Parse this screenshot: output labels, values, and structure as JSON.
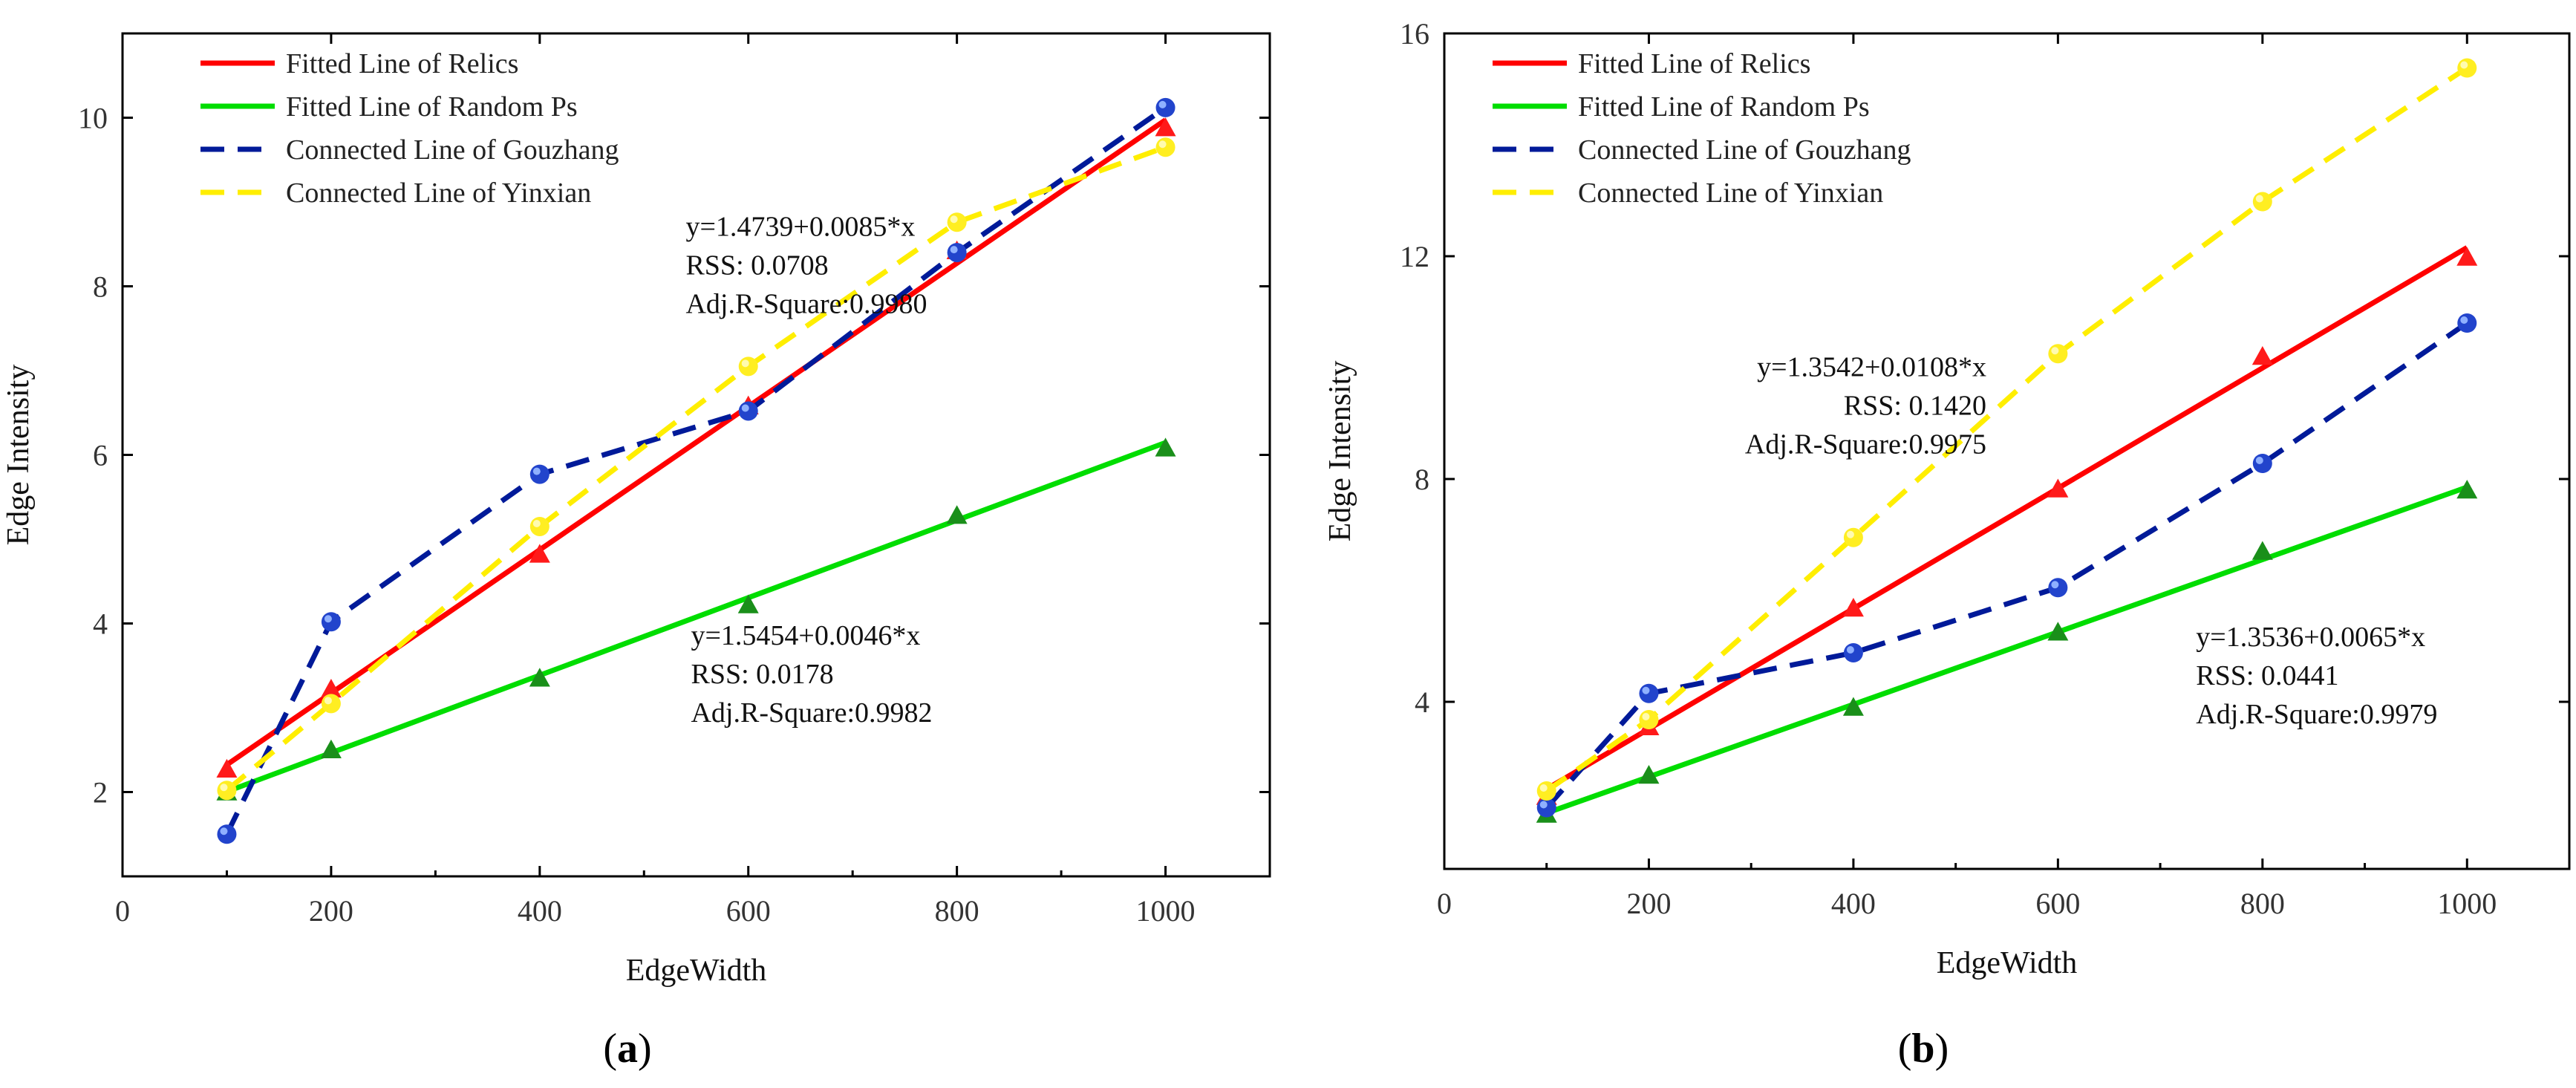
{
  "chart_data": [
    {
      "id": "a",
      "type": "line",
      "caption_label": "a",
      "xlabel": "EdgeWidth",
      "ylabel": "Edge Intensity",
      "xlim": [
        0,
        1100
      ],
      "ylim": [
        1,
        11
      ],
      "xticks": [
        0,
        200,
        400,
        600,
        800,
        1000
      ],
      "yticks": [
        2,
        4,
        6,
        8,
        10
      ],
      "x": [
        100,
        200,
        400,
        600,
        800,
        1000
      ],
      "series": [
        {
          "name": "Fitted Line of Relics",
          "color": "#ff0000",
          "style": "solid",
          "marker": "triangle",
          "fit": {
            "intercept": 1.4739,
            "slope": 0.0085
          },
          "values": [
            2.27,
            3.22,
            4.82,
            6.58,
            8.42,
            9.88
          ]
        },
        {
          "name": "Fitted Line of Random Ps",
          "color": "#00dd00",
          "style": "solid",
          "marker": "triangle-dark",
          "fit": {
            "intercept": 1.5454,
            "slope": 0.0046
          },
          "values": [
            2.0,
            2.5,
            3.35,
            4.22,
            5.28,
            6.08
          ]
        },
        {
          "name": "Connected Line of Gouzhang",
          "color": "#001a99",
          "style": "dashed",
          "marker": "circle-blue",
          "values": [
            1.5,
            4.02,
            5.77,
            6.52,
            8.4,
            10.12
          ]
        },
        {
          "name": "Connected Line of Yinxian",
          "color": "#ffee00",
          "style": "dashed",
          "marker": "circle-yellow",
          "values": [
            2.02,
            3.05,
            5.15,
            7.05,
            8.76,
            9.65
          ]
        }
      ],
      "annotations": [
        {
          "lines": [
            "y=1.4739+0.0085*x",
            "RSS: 0.0708",
            "Adj.R-Square:0.9980"
          ],
          "anchor_x": 540,
          "anchor_y": 8.6,
          "align": "start"
        },
        {
          "lines": [
            "y=1.5454+0.0046*x",
            "RSS: 0.0178",
            "Adj.R-Square:0.9982"
          ],
          "anchor_x": 545,
          "anchor_y": 3.75,
          "align": "start"
        }
      ]
    },
    {
      "id": "b",
      "type": "line",
      "caption_label": "b",
      "xlabel": "EdgeWidth",
      "ylabel": "Edge Intensity",
      "xlim": [
        0,
        1100
      ],
      "ylim": [
        1,
        16
      ],
      "xticks": [
        0,
        200,
        400,
        600,
        800,
        1000
      ],
      "yticks": [
        4,
        8,
        12,
        16
      ],
      "x": [
        100,
        200,
        400,
        600,
        800,
        1000
      ],
      "series": [
        {
          "name": "Fitted Line of Relics",
          "color": "#ff0000",
          "style": "solid",
          "marker": "triangle",
          "fit": {
            "intercept": 1.3542,
            "slope": 0.0108
          },
          "values": [
            2.3,
            3.55,
            5.68,
            7.82,
            10.2,
            11.98
          ]
        },
        {
          "name": "Fitted Line of Random Ps",
          "color": "#00dd00",
          "style": "solid",
          "marker": "triangle-dark",
          "fit": {
            "intercept": 1.3536,
            "slope": 0.0065
          },
          "values": [
            1.98,
            2.68,
            3.9,
            5.25,
            6.7,
            7.8
          ]
        },
        {
          "name": "Connected Line of Gouzhang",
          "color": "#001a99",
          "style": "dashed",
          "marker": "circle-blue",
          "values": [
            2.1,
            4.15,
            4.88,
            6.05,
            8.28,
            10.8
          ]
        },
        {
          "name": "Connected Line of Yinxian",
          "color": "#ffee00",
          "style": "dashed",
          "marker": "circle-yellow",
          "values": [
            2.4,
            3.68,
            6.95,
            10.25,
            12.98,
            15.38
          ]
        }
      ],
      "annotations": [
        {
          "lines": [
            "y=1.3542+0.0108*x",
            "RSS: 0.1420",
            "Adj.R-Square:0.9975"
          ],
          "anchor_x": 530,
          "anchor_y": 9.85,
          "align": "end"
        },
        {
          "lines": [
            "y=1.3536+0.0065*x",
            "RSS: 0.0441",
            "Adj.R-Square:0.9979"
          ],
          "anchor_x": 735,
          "anchor_y": 5.0,
          "align": "start"
        }
      ]
    }
  ]
}
